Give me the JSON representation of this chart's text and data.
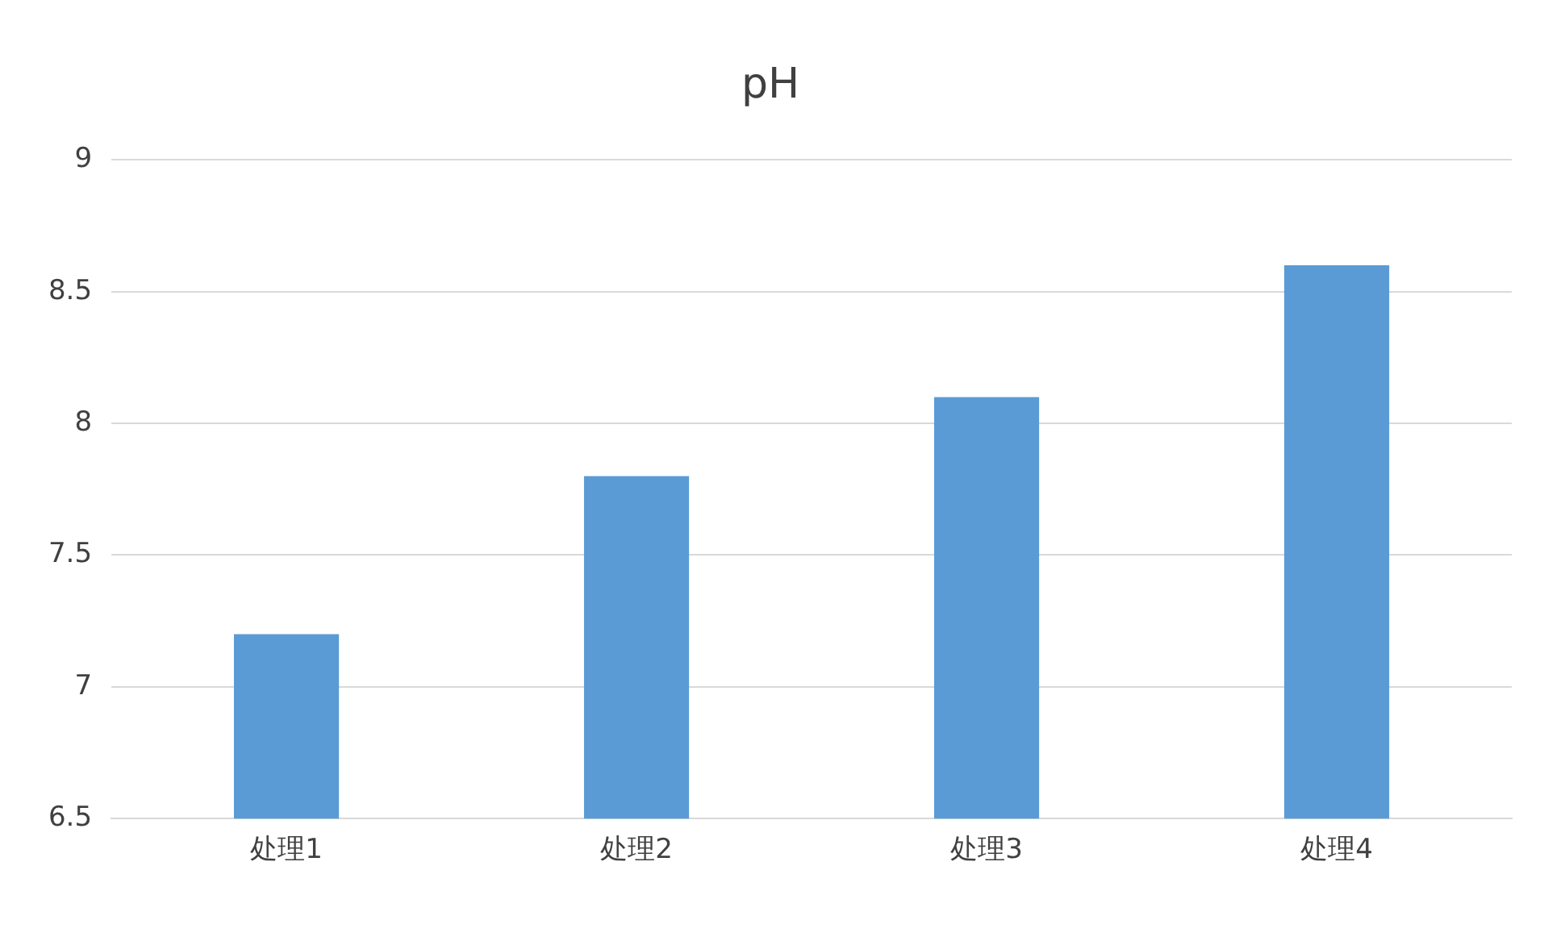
{
  "chart_data": {
    "type": "bar",
    "title": "pH",
    "categories": [
      "处理1",
      "处理2",
      "处理3",
      "处理4"
    ],
    "values": [
      7.2,
      7.8,
      8.1,
      8.6
    ],
    "color": "#5b9bd5",
    "ylim": [
      6.5,
      9
    ],
    "yticks": [
      6.5,
      7,
      7.5,
      8,
      8.5,
      9
    ],
    "grid": "y",
    "legend": false
  }
}
